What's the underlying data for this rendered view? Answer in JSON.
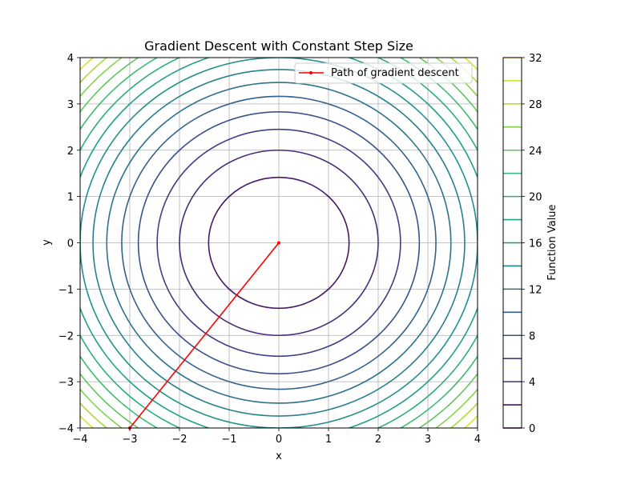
{
  "chart_data": {
    "type": "contour",
    "title": "Gradient Descent with Constant Step Size",
    "xlabel": "x",
    "ylabel": "y",
    "xlim": [
      -4,
      4
    ],
    "ylim": [
      -4,
      4
    ],
    "x_ticks": [
      -4,
      -3,
      -2,
      -1,
      0,
      1,
      2,
      3,
      4
    ],
    "y_ticks": [
      -4,
      -3,
      -2,
      -1,
      0,
      1,
      2,
      3,
      4
    ],
    "x_tick_labels": [
      "−4",
      "−3",
      "−2",
      "−1",
      "0",
      "1",
      "2",
      "3",
      "4"
    ],
    "y_tick_labels": [
      "−4",
      "−3",
      "−2",
      "−1",
      "0",
      "1",
      "2",
      "3",
      "4"
    ],
    "grid": true,
    "function": "x^2 + y^2",
    "contour_levels": [
      2,
      4,
      6,
      8,
      10,
      12,
      14,
      16,
      18,
      20,
      22,
      24,
      26,
      28,
      30
    ],
    "colormap": [
      "#440154",
      "#482878",
      "#3e4989",
      "#31688e",
      "#26828e",
      "#1f9e89",
      "#35b779",
      "#6ece58",
      "#b5de2b",
      "#fde725"
    ],
    "series": [
      {
        "name": "Path of gradient descent",
        "color": "#ff0000",
        "x": [
          -3,
          0
        ],
        "y": [
          -4,
          0
        ]
      }
    ],
    "legend": {
      "position": "top-right",
      "entries": [
        "Path of gradient descent"
      ]
    },
    "colorbar": {
      "label": "Function Value",
      "range": [
        0,
        32
      ],
      "levels": [
        0,
        2,
        4,
        6,
        8,
        10,
        12,
        14,
        16,
        18,
        20,
        22,
        24,
        26,
        28,
        30,
        32
      ],
      "ticks": [
        0,
        4,
        8,
        12,
        16,
        20,
        24,
        28,
        32
      ],
      "tick_labels": [
        "0",
        "4",
        "8",
        "12",
        "16",
        "20",
        "24",
        "28",
        "32"
      ]
    }
  }
}
